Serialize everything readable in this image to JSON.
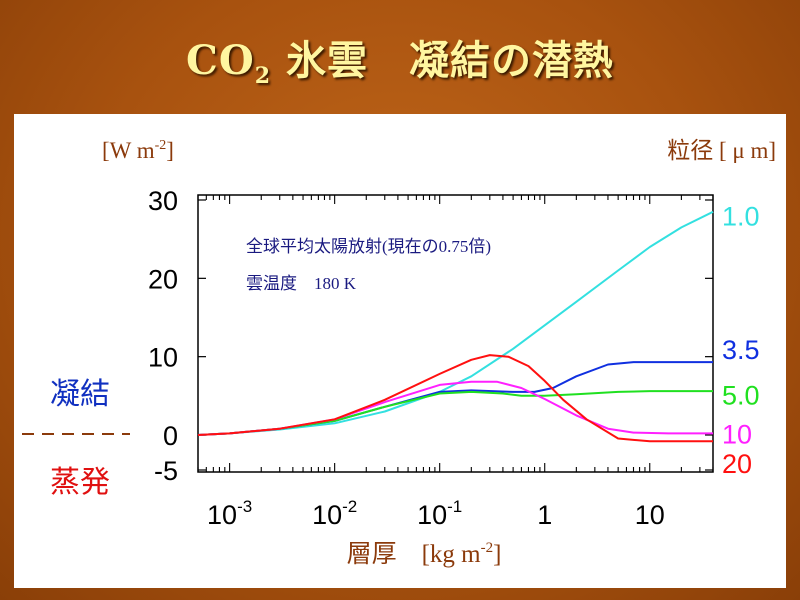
{
  "title": {
    "main": "CO",
    "sub": "2",
    "rest": " 氷雲　凝結の潜熱"
  },
  "left_unit": {
    "prefix": "[W m",
    "exp": "-2",
    "suffix": "]"
  },
  "right_unit": "粒径 [ μ m]",
  "side_labels": {
    "condensation": "凝結",
    "evaporation": "蒸発"
  },
  "annotation": [
    "全球平均太陽放射(現在の0.75倍)",
    "雲温度　180 K"
  ],
  "xlabel": {
    "prefix": "層厚　[kg m",
    "exp": "-2",
    "suffix": "]"
  },
  "colors": {
    "title": "#fff6a0",
    "label": "#8b3a0b",
    "annotation": "#1a1a80",
    "condensation": "#1030c0",
    "evaporation": "#e01010"
  },
  "chart_data": {
    "type": "line",
    "x_scale": "log",
    "xlim": [
      0.0005,
      40
    ],
    "ylim": [
      -5,
      30
    ],
    "y_ticks": [
      {
        "v": 30,
        "label": "30"
      },
      {
        "v": 20,
        "label": "20"
      },
      {
        "v": 10,
        "label": "10"
      },
      {
        "v": 0,
        "label": "0"
      },
      {
        "v": -5,
        "label": "-5"
      }
    ],
    "x_ticks": [
      {
        "v": 0.001,
        "base": "10",
        "exp": "-3"
      },
      {
        "v": 0.01,
        "base": "10",
        "exp": "-2"
      },
      {
        "v": 0.1,
        "base": "10",
        "exp": "-1"
      },
      {
        "v": 1,
        "base": "1",
        "exp": ""
      },
      {
        "v": 10,
        "base": "10",
        "exp": ""
      }
    ],
    "series": [
      {
        "name": "1.0",
        "color": "#33e0e0",
        "x": [
          0.0005,
          0.001,
          0.003,
          0.01,
          0.03,
          0.1,
          0.2,
          0.5,
          1,
          2,
          5,
          10,
          20,
          40
        ],
        "y": [
          0,
          0.2,
          0.7,
          1.5,
          3,
          5.5,
          7.5,
          11,
          14,
          17,
          21,
          24,
          26.5,
          28.5
        ]
      },
      {
        "name": "3.5",
        "color": "#1030e0",
        "x": [
          0.0005,
          0.001,
          0.003,
          0.01,
          0.03,
          0.1,
          0.2,
          0.5,
          0.8,
          1.2,
          2,
          4,
          7,
          15,
          40
        ],
        "y": [
          0,
          0.2,
          0.8,
          1.8,
          3.6,
          5.5,
          5.7,
          5.5,
          5.5,
          6,
          7.5,
          9,
          9.3,
          9.3,
          9.3
        ]
      },
      {
        "name": "5.0",
        "color": "#20e020",
        "x": [
          0.0005,
          0.001,
          0.003,
          0.01,
          0.03,
          0.1,
          0.2,
          0.4,
          0.6,
          1,
          2,
          5,
          10,
          40
        ],
        "y": [
          0,
          0.2,
          0.8,
          1.8,
          3.6,
          5.3,
          5.5,
          5.3,
          5.0,
          5.0,
          5.2,
          5.5,
          5.6,
          5.6
        ]
      },
      {
        "name": "10",
        "color": "#ff20ff",
        "x": [
          0.0005,
          0.001,
          0.003,
          0.01,
          0.03,
          0.1,
          0.2,
          0.35,
          0.6,
          1,
          2,
          4,
          7,
          15,
          40
        ],
        "y": [
          0,
          0.2,
          0.8,
          2.0,
          4.2,
          6.4,
          6.8,
          6.8,
          6.0,
          4.6,
          2.5,
          0.8,
          0.3,
          0.2,
          0.2
        ]
      },
      {
        "name": "20",
        "color": "#ff1010",
        "x": [
          0.0005,
          0.001,
          0.003,
          0.01,
          0.03,
          0.1,
          0.2,
          0.3,
          0.45,
          0.7,
          1,
          1.5,
          2.5,
          5,
          10,
          40
        ],
        "y": [
          0,
          0.2,
          0.8,
          2.0,
          4.5,
          7.8,
          9.6,
          10.2,
          10.0,
          8.8,
          6.9,
          4.5,
          2.0,
          -0.5,
          -0.9,
          -0.9
        ]
      }
    ],
    "series_labels": [
      {
        "label": "1.0",
        "color": "#33e0e0",
        "y": 28.0
      },
      {
        "label": "3.5",
        "color": "#1030e0",
        "y": 11.0
      },
      {
        "label": "5.0",
        "color": "#20e020",
        "y": 5.2
      },
      {
        "label": "10",
        "color": "#ff20ff",
        "y": 0.2
      },
      {
        "label": "20",
        "color": "#ff1010",
        "y": -4.0
      }
    ]
  }
}
